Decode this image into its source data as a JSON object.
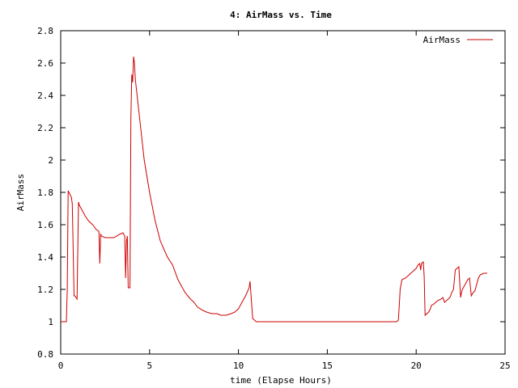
{
  "chart_data": {
    "type": "line",
    "title": "4: AirMass vs. Time",
    "xlabel": "time (Elapse Hours)",
    "ylabel": "AirMass",
    "xlim": [
      0,
      25
    ],
    "ylim": [
      0.8,
      2.8
    ],
    "xticks": [
      0,
      5,
      10,
      15,
      20,
      25
    ],
    "xtick_labels": [
      "0",
      "5",
      "10",
      "15",
      "20",
      "25"
    ],
    "yticks": [
      0.8,
      1,
      1.2,
      1.4,
      1.6,
      1.8,
      2,
      2.2,
      2.4,
      2.6,
      2.8
    ],
    "ytick_labels": [
      "0.8",
      "1",
      "1.2",
      "1.4",
      "1.6",
      "1.8",
      "2",
      "2.2",
      "2.4",
      "2.6",
      "2.8"
    ],
    "grid": false,
    "legend_position": "top-right",
    "series": [
      {
        "name": "AirMass",
        "color": "#cc0000",
        "x": [
          0,
          0.32,
          0.37,
          0.42,
          0.6,
          0.65,
          0.75,
          0.8,
          0.92,
          1.0,
          1.05,
          1.2,
          1.4,
          1.6,
          1.8,
          2.0,
          2.15,
          2.2,
          2.25,
          2.3,
          2.5,
          2.8,
          3.0,
          3.3,
          3.5,
          3.6,
          3.65,
          3.7,
          3.75,
          3.8,
          3.85,
          3.9,
          3.95,
          4.0,
          4.05,
          4.1,
          4.15,
          4.2,
          4.3,
          4.5,
          4.7,
          5.0,
          5.3,
          5.6,
          6.0,
          6.3,
          6.6,
          7.0,
          7.3,
          7.4,
          7.5,
          7.7,
          8.0,
          8.2,
          8.5,
          8.8,
          9.0,
          9.3,
          9.6,
          9.8,
          10.0,
          10.2,
          10.4,
          10.6,
          10.65,
          10.8,
          11.0,
          12.0,
          14.0,
          16.0,
          18.0,
          18.9,
          19.0,
          19.05,
          19.1,
          19.2,
          19.4,
          19.6,
          19.8,
          20.0,
          20.1,
          20.2,
          20.25,
          20.3,
          20.4,
          20.45,
          20.5,
          20.7,
          20.8,
          20.85,
          21.0,
          21.2,
          21.4,
          21.5,
          21.6,
          21.7,
          21.8,
          21.9,
          22.0,
          22.1,
          22.2,
          22.4,
          22.5,
          22.55,
          22.6,
          22.7,
          22.8,
          22.9,
          23.0,
          23.1,
          23.15,
          23.2,
          23.3,
          23.5,
          23.6,
          23.8,
          23.9,
          24.0
        ],
        "values": [
          1.0,
          1.0,
          1.2,
          1.81,
          1.77,
          1.73,
          1.16,
          1.16,
          1.14,
          1.74,
          1.72,
          1.69,
          1.65,
          1.62,
          1.6,
          1.57,
          1.56,
          1.36,
          1.54,
          1.53,
          1.52,
          1.52,
          1.52,
          1.54,
          1.55,
          1.53,
          1.27,
          1.5,
          1.53,
          1.21,
          1.21,
          1.21,
          2.25,
          2.53,
          2.48,
          2.64,
          2.6,
          2.5,
          2.4,
          2.2,
          2.0,
          1.8,
          1.63,
          1.5,
          1.4,
          1.35,
          1.26,
          1.18,
          1.14,
          1.13,
          1.12,
          1.09,
          1.07,
          1.06,
          1.05,
          1.05,
          1.04,
          1.04,
          1.05,
          1.06,
          1.08,
          1.12,
          1.16,
          1.21,
          1.25,
          1.02,
          1.0,
          1.0,
          1.0,
          1.0,
          1.0,
          1.0,
          1.01,
          1.1,
          1.2,
          1.26,
          1.27,
          1.29,
          1.31,
          1.33,
          1.35,
          1.36,
          1.32,
          1.36,
          1.37,
          1.28,
          1.04,
          1.06,
          1.08,
          1.1,
          1.11,
          1.13,
          1.14,
          1.15,
          1.12,
          1.13,
          1.14,
          1.15,
          1.18,
          1.2,
          1.32,
          1.34,
          1.15,
          1.18,
          1.2,
          1.22,
          1.24,
          1.26,
          1.27,
          1.16,
          1.17,
          1.18,
          1.19,
          1.27,
          1.29,
          1.3,
          1.3,
          1.3
        ]
      }
    ]
  }
}
